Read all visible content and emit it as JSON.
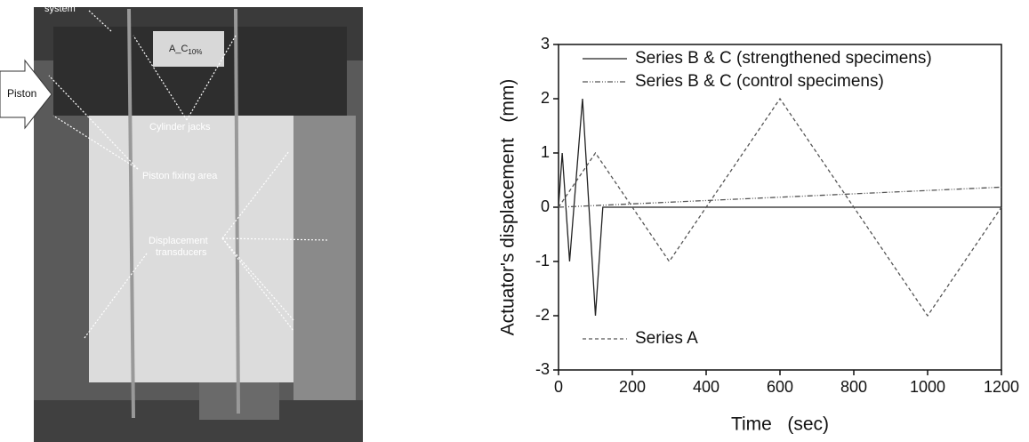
{
  "photo": {
    "labels": {
      "system": "system",
      "specimen": "A_C",
      "specimen_sub": "10%",
      "piston": "Piston",
      "jacks": "Cylinder jacks",
      "fixing": "Piston fixing area",
      "transducers": [
        "Displacement",
        "transducers"
      ]
    }
  },
  "chart_data": {
    "type": "line",
    "xlabel": "Time   (sec)",
    "ylabel": "Actuator's displacement   (mm)",
    "xlim": [
      0,
      1200
    ],
    "xticks": [
      0,
      200,
      400,
      600,
      800,
      1000,
      1200
    ],
    "ylim": [
      -3,
      3
    ],
    "yticks": [
      -3,
      -2,
      -1,
      0,
      1,
      2,
      3
    ],
    "series": [
      {
        "name": "Series B & C (strengthened specimens)",
        "color": "#222222",
        "dash": "none",
        "x": [
          0,
          10,
          30,
          65,
          100,
          120,
          1200
        ],
        "values": [
          0,
          1,
          -1,
          2,
          -2,
          0,
          0
        ]
      },
      {
        "name": "Series B & C (control specimens)",
        "color": "#555555",
        "dash": "6 2 1 2 1 2",
        "x": [
          0,
          1200
        ],
        "values": [
          0,
          0.37
        ]
      },
      {
        "name": "Series A",
        "color": "#555555",
        "dash": "4 3",
        "x": [
          0,
          100,
          300,
          600,
          1000,
          1200
        ],
        "values": [
          0,
          1,
          -1,
          2,
          -2,
          0
        ]
      }
    ]
  }
}
